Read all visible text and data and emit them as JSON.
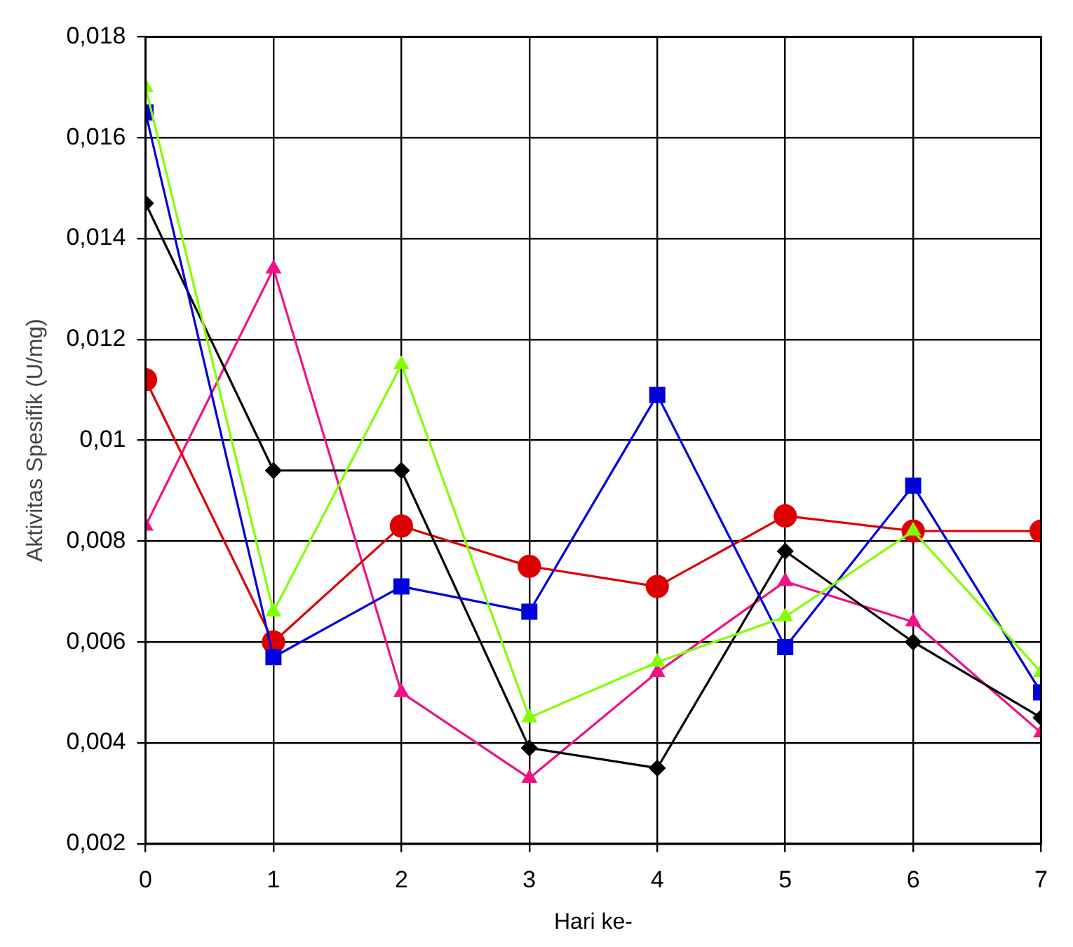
{
  "chart_data": {
    "type": "line",
    "xlabel": "Hari ke-",
    "ylabel": "Aktivitas Spesifik (U/mg)",
    "x": [
      0,
      1,
      2,
      3,
      4,
      5,
      6,
      7
    ],
    "series": [
      {
        "color": "#80ff00",
        "marker": "triangle",
        "values": [
          0.017,
          0.0066,
          0.0115,
          0.0045,
          0.0056,
          0.0065,
          0.0082,
          0.0054
        ]
      },
      {
        "color": "#0000dd",
        "marker": "square",
        "values": [
          0.0165,
          0.0057,
          0.0071,
          0.0066,
          0.0109,
          0.0059,
          0.0091,
          0.005
        ]
      },
      {
        "color": "#000000",
        "marker": "diamond",
        "values": [
          0.0147,
          0.0094,
          0.0094,
          0.0039,
          0.0035,
          0.0078,
          0.006,
          0.0045
        ]
      },
      {
        "color": "#dd0000",
        "marker": "circle",
        "values": [
          0.0112,
          0.006,
          0.0083,
          0.0075,
          0.0071,
          0.0085,
          0.0082,
          0.0082
        ]
      },
      {
        "color": "#ee1188",
        "marker": "triangle",
        "values": [
          0.0083,
          0.0134,
          0.005,
          0.0033,
          0.0054,
          0.0072,
          0.0064,
          0.0042
        ]
      }
    ],
    "xlim": [
      0,
      7
    ],
    "xticks": [
      0,
      1,
      2,
      3,
      4,
      5,
      6,
      7
    ],
    "ylim": [
      0.002,
      0.018
    ],
    "yticks": [
      {
        "value": 0.002,
        "label": "0,002"
      },
      {
        "value": 0.004,
        "label": "0,004"
      },
      {
        "value": 0.006,
        "label": "0,006"
      },
      {
        "value": 0.008,
        "label": "0,008"
      },
      {
        "value": 0.01,
        "label": "0,01"
      },
      {
        "value": 0.012,
        "label": "0,012"
      },
      {
        "value": 0.014,
        "label": "0,014"
      },
      {
        "value": 0.016,
        "label": "0,016"
      },
      {
        "value": 0.018,
        "label": "0,018"
      }
    ],
    "grid": true,
    "legend": false,
    "line_style": "solid"
  }
}
